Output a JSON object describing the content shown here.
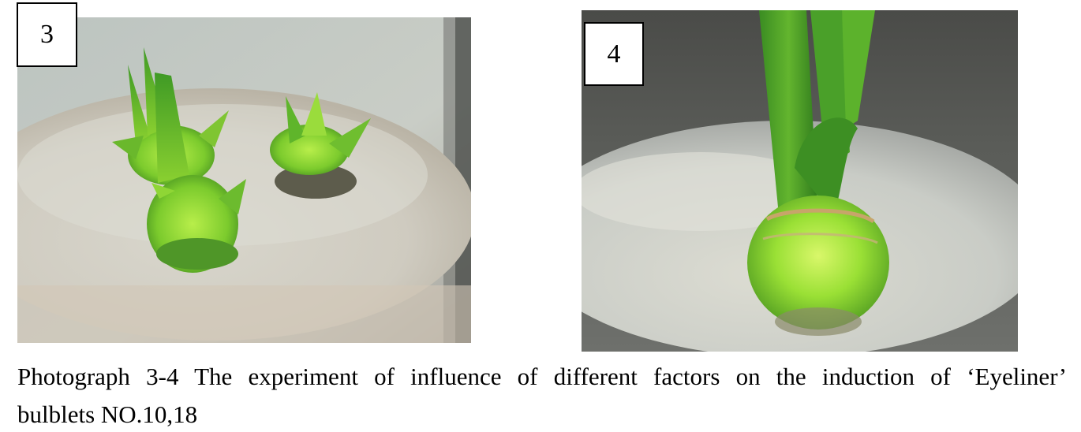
{
  "photos": [
    {
      "label": "3"
    },
    {
      "label": "4"
    }
  ],
  "caption": {
    "line1": "Photograph 3-4 The experiment of influence of different factors on the induction of ‘Eyeliner’",
    "line2": "bulblets NO.10,18"
  },
  "colors": {
    "leaf_green": "#5fbf2a",
    "bright_green": "#a8e838",
    "medium": "#d8d8d0",
    "background_dark": "#4a4a48"
  }
}
